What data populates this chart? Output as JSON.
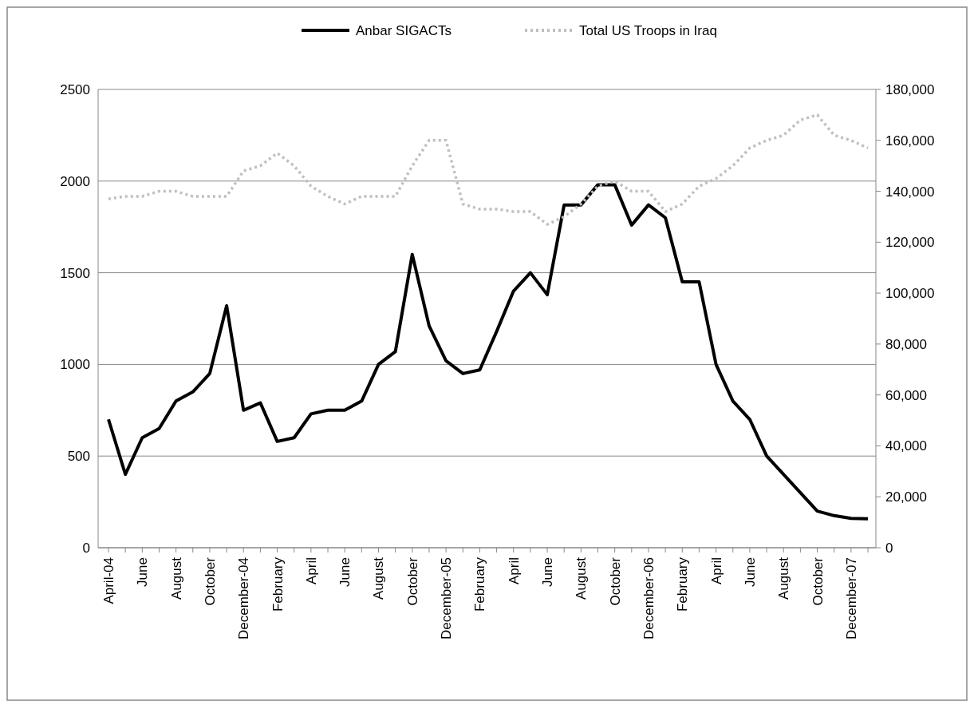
{
  "chart_data": {
    "type": "line",
    "categories": [
      "April-04",
      null,
      "June",
      null,
      "August",
      null,
      "October",
      null,
      "December-04",
      null,
      "February",
      null,
      "April",
      null,
      "June",
      null,
      "August",
      null,
      "October",
      null,
      "December-05",
      null,
      "February",
      null,
      "April",
      null,
      "June",
      null,
      "August",
      null,
      "October",
      null,
      "December-06",
      null,
      "February",
      null,
      "April",
      null,
      "June",
      null,
      "August",
      null,
      "October",
      null,
      "December-07",
      null
    ],
    "series": [
      {
        "name": "Anbar SIGACTs",
        "color": "#000000",
        "line_style": "solid",
        "values": [
          700,
          400,
          600,
          650,
          800,
          850,
          950,
          1320,
          750,
          790,
          580,
          600,
          730,
          750,
          750,
          800,
          1000,
          1070,
          1600,
          1210,
          1020,
          950,
          970,
          1180,
          1400,
          1500,
          1380,
          1870,
          1870,
          1980,
          1980,
          1760,
          1870,
          1800,
          1450,
          1450,
          1000,
          800,
          700,
          500,
          400,
          300,
          200,
          175,
          160,
          158
        ]
      },
      {
        "name": "Total US Troops in Iraq",
        "color": "#bfbfbf",
        "line_style": "dotted",
        "axis": "y2",
        "values": [
          137000,
          138000,
          138000,
          140000,
          140000,
          138000,
          138000,
          138000,
          148000,
          150000,
          155000,
          150000,
          142000,
          138000,
          135000,
          138000,
          138000,
          138000,
          150000,
          160000,
          160000,
          135000,
          133000,
          133000,
          132000,
          132000,
          127000,
          130000,
          135000,
          142000,
          144000,
          140000,
          140000,
          132000,
          135000,
          142000,
          145000,
          150000,
          157000,
          160000,
          162000,
          168000,
          170000,
          162000,
          160000,
          157000
        ]
      }
    ],
    "ylim": [
      0,
      2500
    ],
    "yticks": [
      0,
      500,
      1000,
      1500,
      2000,
      2500
    ],
    "y2lim": [
      0,
      180000
    ],
    "y2ticks": [
      {
        "value": 0,
        "label": "0"
      },
      {
        "value": 20000,
        "label": "20,000"
      },
      {
        "value": 40000,
        "label": "40,000"
      },
      {
        "value": 60000,
        "label": "60,000"
      },
      {
        "value": 80000,
        "label": "80,000"
      },
      {
        "value": 100000,
        "label": "100,000"
      },
      {
        "value": 120000,
        "label": "120,000"
      },
      {
        "value": 140000,
        "label": "140,000"
      },
      {
        "value": 160000,
        "label": "160,000"
      },
      {
        "value": 180000,
        "label": "180,000"
      }
    ],
    "grid": "y",
    "legend": "top"
  }
}
